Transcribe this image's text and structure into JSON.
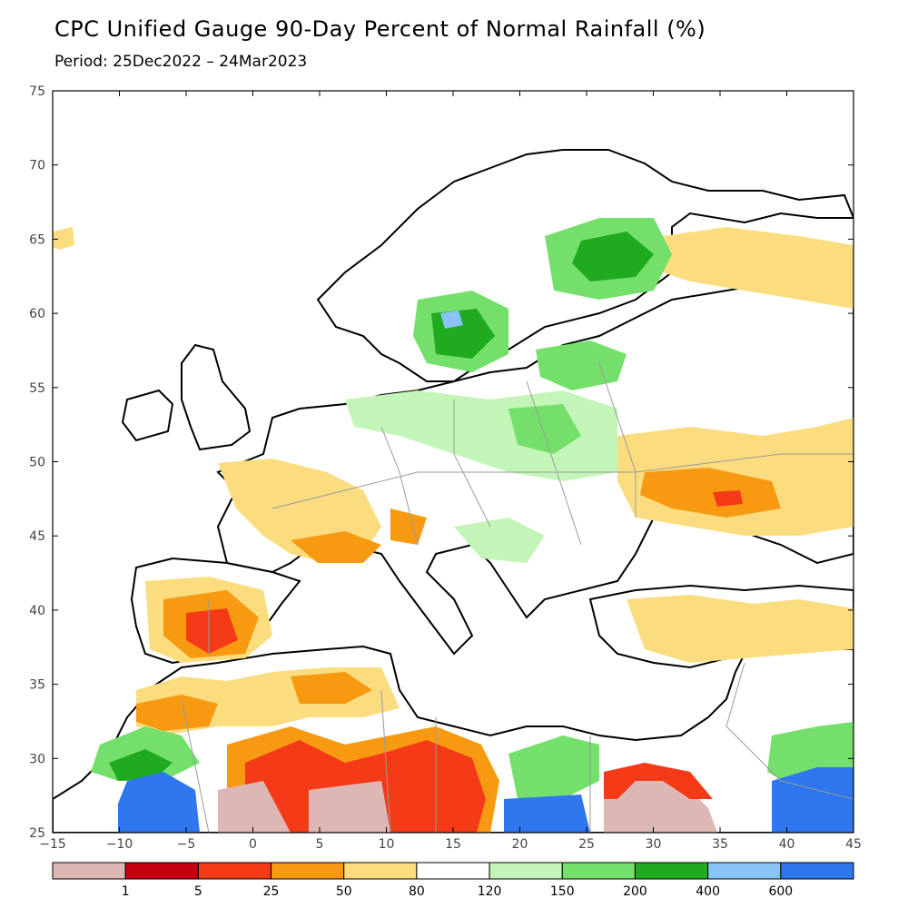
{
  "title": "CPC Unified Gauge 90-Day Percent of Normal Rainfall (%)",
  "subtitle": "Period: 25Dec2022 – 24Mar2023",
  "axes": {
    "x_ticks": [
      "−15",
      "−10",
      "−5",
      "0",
      "5",
      "10",
      "15",
      "20",
      "25",
      "30",
      "35",
      "40",
      "45"
    ],
    "y_ticks": [
      "75",
      "70",
      "65",
      "60",
      "55",
      "50",
      "45",
      "40",
      "35",
      "30",
      "25"
    ]
  },
  "colorbar": {
    "colors": [
      "#ddb7b4",
      "#c4000f",
      "#f53a18",
      "#f79a12",
      "#fbdd7f",
      "#ffffff",
      "#c4f5b8",
      "#74e06b",
      "#1faa1f",
      "#88c4f8",
      "#2f77ee"
    ],
    "labels": [
      "1",
      "5",
      "25",
      "50",
      "80",
      "120",
      "150",
      "200",
      "400",
      "600"
    ]
  },
  "map_colors": {
    "land": "#ffffff",
    "sea": "#ffffff",
    "coast": "#000000",
    "border": "#9a9a9a"
  }
}
